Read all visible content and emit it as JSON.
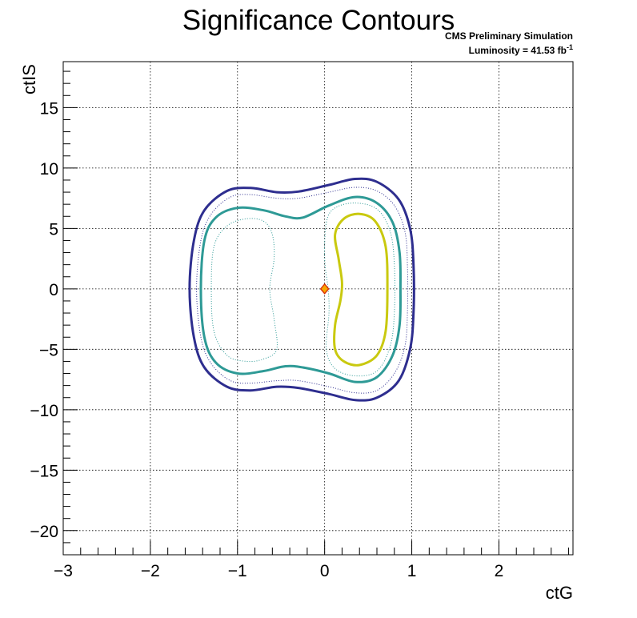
{
  "chart_data": {
    "type": "contour",
    "title": "Significance Contours",
    "annotation": {
      "line1": "CMS Preliminary Simulation",
      "line2_prefix": "Luminosity = 41.53 fb",
      "line2_superscript": "-1"
    },
    "xlabel": "ctG",
    "ylabel": "ctIS",
    "xlim": [
      -3.0,
      2.85
    ],
    "ylim": [
      -22.0,
      18.8
    ],
    "xticks": [
      -3,
      -2,
      -1,
      0,
      1,
      2
    ],
    "yticks": [
      -20,
      -15,
      -10,
      -5,
      0,
      5,
      10,
      15
    ],
    "xtick_labels": [
      "−3",
      "−2",
      "−1",
      "0",
      "1",
      "2"
    ],
    "ytick_labels": [
      "−20",
      "−15",
      "−10",
      "−5",
      "0",
      "5",
      "10",
      "15"
    ],
    "grid": true,
    "best_fit_point": {
      "x": 0.0,
      "y": 0.0,
      "marker": "diamond",
      "fill": "#f7a600",
      "stroke": "#d92b00"
    },
    "contours": [
      {
        "id": "outer-solid",
        "color": "#2e2e8f",
        "style": "solid",
        "points": [
          [
            -1.55,
            0
          ],
          [
            -1.5,
            4
          ],
          [
            -1.38,
            6.5
          ],
          [
            -1.12,
            8.1
          ],
          [
            -0.85,
            8.35
          ],
          [
            -0.55,
            8.0
          ],
          [
            -0.3,
            8.05
          ],
          [
            0.05,
            8.6
          ],
          [
            0.35,
            9.1
          ],
          [
            0.6,
            8.85
          ],
          [
            0.85,
            7.4
          ],
          [
            0.98,
            5.0
          ],
          [
            1.02,
            2.0
          ],
          [
            1.02,
            -2.0
          ],
          [
            0.98,
            -5.0
          ],
          [
            0.85,
            -7.6
          ],
          [
            0.6,
            -9.0
          ],
          [
            0.35,
            -9.2
          ],
          [
            0.05,
            -8.7
          ],
          [
            -0.3,
            -8.2
          ],
          [
            -0.55,
            -8.1
          ],
          [
            -0.85,
            -8.4
          ],
          [
            -1.12,
            -8.1
          ],
          [
            -1.38,
            -6.5
          ],
          [
            -1.5,
            -4
          ],
          [
            -1.55,
            0
          ]
        ]
      },
      {
        "id": "outer-dotted",
        "color": "#2e2e8f",
        "style": "dotted",
        "points": [
          [
            -1.47,
            0
          ],
          [
            -1.42,
            4
          ],
          [
            -1.3,
            6.2
          ],
          [
            -1.08,
            7.6
          ],
          [
            -0.85,
            7.8
          ],
          [
            -0.55,
            7.5
          ],
          [
            -0.3,
            7.5
          ],
          [
            0.05,
            8.0
          ],
          [
            0.35,
            8.4
          ],
          [
            0.6,
            8.1
          ],
          [
            0.8,
            6.9
          ],
          [
            0.92,
            4.8
          ],
          [
            0.95,
            2.0
          ],
          [
            0.95,
            -2.0
          ],
          [
            0.92,
            -4.8
          ],
          [
            0.8,
            -7.0
          ],
          [
            0.6,
            -8.4
          ],
          [
            0.35,
            -8.6
          ],
          [
            0.05,
            -8.1
          ],
          [
            -0.3,
            -7.6
          ],
          [
            -0.55,
            -7.6
          ],
          [
            -0.85,
            -7.8
          ],
          [
            -1.08,
            -7.6
          ],
          [
            -1.3,
            -6.2
          ],
          [
            -1.42,
            -4
          ],
          [
            -1.47,
            0
          ]
        ]
      },
      {
        "id": "middle-solid",
        "color": "#2e9a96",
        "style": "solid",
        "points": [
          [
            -1.42,
            0
          ],
          [
            -1.38,
            4
          ],
          [
            -1.25,
            5.9
          ],
          [
            -1.0,
            6.7
          ],
          [
            -0.7,
            6.5
          ],
          [
            -0.45,
            6.0
          ],
          [
            -0.25,
            5.9
          ],
          [
            0.05,
            6.9
          ],
          [
            0.35,
            7.6
          ],
          [
            0.6,
            7.1
          ],
          [
            0.78,
            5.5
          ],
          [
            0.86,
            3.0
          ],
          [
            0.87,
            0
          ],
          [
            0.86,
            -3.0
          ],
          [
            0.78,
            -5.5
          ],
          [
            0.6,
            -7.3
          ],
          [
            0.35,
            -7.7
          ],
          [
            0.05,
            -7.0
          ],
          [
            -0.25,
            -6.5
          ],
          [
            -0.45,
            -6.4
          ],
          [
            -0.7,
            -6.8
          ],
          [
            -1.0,
            -7.0
          ],
          [
            -1.25,
            -6.1
          ],
          [
            -1.38,
            -4
          ],
          [
            -1.42,
            0
          ]
        ]
      },
      {
        "id": "middle-dotted",
        "color": "#2e9a96",
        "style": "dotted",
        "points": [
          [
            -1.3,
            0
          ],
          [
            -1.27,
            3.5
          ],
          [
            -1.12,
            5.2
          ],
          [
            -0.9,
            5.8
          ],
          [
            -0.7,
            5.6
          ],
          [
            -0.6,
            4.5
          ],
          [
            -0.58,
            2.5
          ],
          [
            -0.63,
            0
          ],
          [
            -0.58,
            -2.5
          ],
          [
            -0.55,
            -5.0
          ],
          [
            -0.7,
            -5.8
          ],
          [
            -0.9,
            -6.0
          ],
          [
            -1.12,
            -5.5
          ],
          [
            -1.27,
            -3.5
          ],
          [
            -1.3,
            0
          ]
        ]
      },
      {
        "id": "middle-dotted-right",
        "color": "#2e9a96",
        "style": "dotted",
        "points": [
          [
            0.02,
            5.5
          ],
          [
            0.12,
            6.7
          ],
          [
            0.35,
            7.1
          ],
          [
            0.6,
            6.6
          ],
          [
            0.75,
            4.8
          ],
          [
            0.8,
            2.0
          ],
          [
            0.8,
            -2.0
          ],
          [
            0.75,
            -4.8
          ],
          [
            0.6,
            -6.8
          ],
          [
            0.35,
            -7.2
          ],
          [
            0.12,
            -6.6
          ],
          [
            0.02,
            -5.0
          ],
          [
            0.05,
            -2.0
          ],
          [
            0.04,
            0
          ],
          [
            0.0,
            2.5
          ],
          [
            0.02,
            5.5
          ]
        ]
      },
      {
        "id": "inner-solid",
        "color": "#c9c90f",
        "style": "solid",
        "points": [
          [
            0.12,
            4.5
          ],
          [
            0.22,
            5.8
          ],
          [
            0.4,
            6.2
          ],
          [
            0.58,
            5.6
          ],
          [
            0.7,
            3.5
          ],
          [
            0.72,
            0
          ],
          [
            0.7,
            -3.5
          ],
          [
            0.6,
            -5.5
          ],
          [
            0.4,
            -6.3
          ],
          [
            0.22,
            -6.0
          ],
          [
            0.12,
            -5.0
          ],
          [
            0.12,
            -3.0
          ],
          [
            0.18,
            -1.0
          ],
          [
            0.2,
            0.5
          ],
          [
            0.16,
            2.5
          ],
          [
            0.12,
            4.5
          ]
        ]
      }
    ]
  }
}
